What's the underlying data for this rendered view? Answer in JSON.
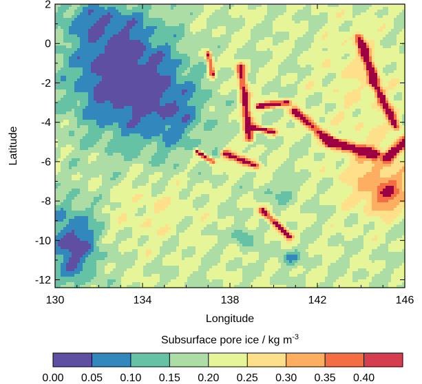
{
  "chart_data": {
    "type": "heatmap",
    "title": "",
    "xlabel": "Longitude",
    "ylabel": "Latitude",
    "xlim": [
      130,
      146
    ],
    "ylim": [
      -12.4,
      2
    ],
    "x_ticks": [
      130,
      134,
      138,
      142,
      146
    ],
    "x_tick_labels": [
      "130",
      "134",
      "138",
      "142",
      "146"
    ],
    "y_ticks": [
      2,
      0,
      -2,
      -4,
      -6,
      -8,
      -10,
      -12
    ],
    "y_tick_labels": [
      "2",
      "0",
      "-2",
      "-4",
      "-6",
      "-8",
      "-10",
      "-12"
    ],
    "grid": false,
    "colorbar": {
      "title_main": "Subsurface pore ice / kg m",
      "title_sup": "-3",
      "levels": [
        0.0,
        0.05,
        0.1,
        0.15,
        0.2,
        0.25,
        0.3,
        0.35,
        0.4
      ],
      "level_labels": [
        "0.00",
        "0.05",
        "0.10",
        "0.15",
        "0.20",
        "0.25",
        "0.30",
        "0.35",
        "0.40"
      ],
      "colors": [
        "#5e4fa2",
        "#3288bd",
        "#66c2a5",
        "#abdda4",
        "#e6f598",
        "#fee08b",
        "#fdae61",
        "#f46d43",
        "#d53e4f"
      ],
      "overflow_color": "#9e0142"
    },
    "field_description": [
      {
        "region": "west 130-136 lon, 2 to -6 lat",
        "value_range": [
          0.0,
          0.05
        ]
      },
      {
        "region": "southwest 130-132 lon, -8 to -12 lat",
        "value_range": [
          0.0,
          0.05
        ]
      },
      {
        "region": "central 137-141 lon, -2 to -6 lat arcs",
        "value_range": [
          0.35,
          0.45
        ]
      },
      {
        "region": "east 142-146 lon, 1 to -8 lat streaks",
        "value_range": [
          0.35,
          0.45
        ]
      },
      {
        "region": "south-central 134-146 lon, -6 to -12 lat",
        "value_range": [
          0.15,
          0.3
        ]
      }
    ]
  }
}
